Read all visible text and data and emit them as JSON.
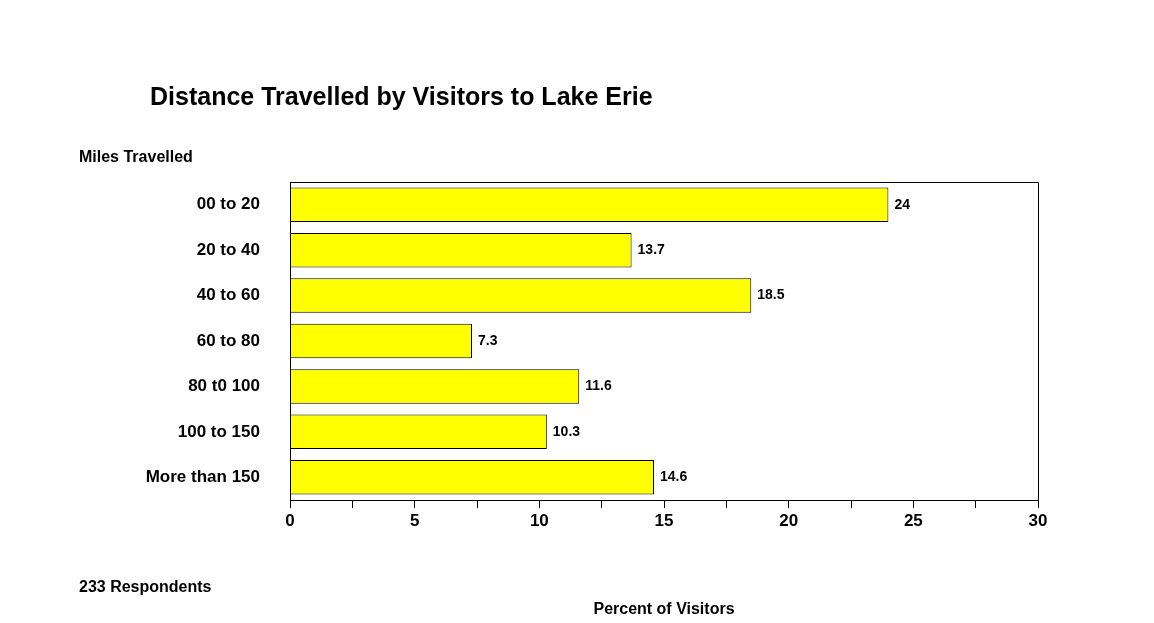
{
  "chart_data": {
    "type": "bar",
    "orientation": "horizontal",
    "title": "Distance Travelled by Visitors to Lake Erie",
    "ylabel": "Miles Travelled",
    "xlabel": "Percent of Visitors",
    "categories": [
      "00 to 20",
      "20 to 40",
      "40 to 60",
      "60 to 80",
      "80 t0 100",
      "100 to 150",
      "More than 150"
    ],
    "values": [
      24,
      13.7,
      18.5,
      7.3,
      11.6,
      10.3,
      14.6
    ],
    "color": "#ffff00",
    "xlim": [
      0,
      30
    ],
    "xticks": [
      0,
      {
        "value": 2.5,
        "label": null
      },
      5,
      {
        "value": 7.5,
        "label": null
      },
      10,
      {
        "value": 12.5,
        "label": null
      },
      15,
      {
        "value": 17.5,
        "label": null
      },
      20,
      {
        "value": 22.5,
        "label": null
      },
      25,
      {
        "value": 27.5,
        "label": null
      },
      30
    ],
    "data_labels": true,
    "grid": false,
    "legend": false,
    "annotations": [
      "233 Respondents"
    ]
  }
}
